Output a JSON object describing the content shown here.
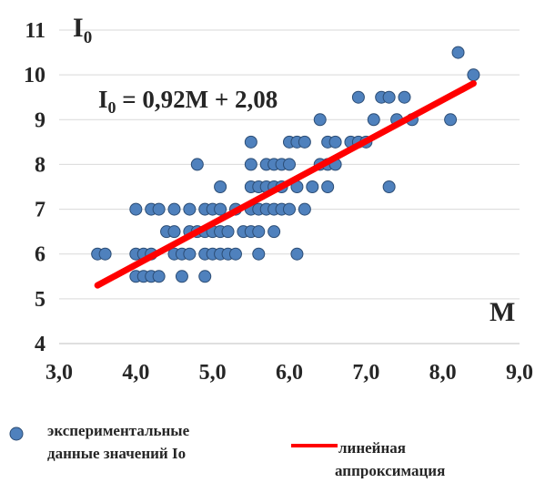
{
  "chart_data": {
    "type": "scatter",
    "xlabel": "M",
    "ylabel": "I",
    "ylabel_subscript": "0",
    "xlim": [
      3.0,
      9.0
    ],
    "ylim": [
      4,
      11
    ],
    "x_ticks": [
      "3,0",
      "4,0",
      "5,0",
      "6,0",
      "7,0",
      "8,0",
      "9,0"
    ],
    "y_ticks": [
      "4",
      "5",
      "6",
      "7",
      "8",
      "9",
      "10",
      "11"
    ],
    "grid": "horizontal",
    "colors": {
      "points": "#4f81bd",
      "point_edge": "#2c4d75",
      "trendline": "#ff0000",
      "grid": "#d9d9d9",
      "text": "#262626"
    },
    "equation": {
      "base": "I",
      "subscript": "0",
      "rest": " = 0,92M + 2,08"
    },
    "trendline": {
      "slope": 0.92,
      "intercept": 2.08,
      "x_range": [
        3.5,
        8.4
      ]
    },
    "legend": {
      "placement": "bottom",
      "points_label": [
        "экспериментальные",
        "данные значений Io"
      ],
      "line_label": [
        "линейная",
        "аппроксимация"
      ]
    },
    "series": [
      {
        "name": "экспериментальные данные значений Io",
        "points": [
          [
            3.5,
            6.0
          ],
          [
            3.6,
            6.0
          ],
          [
            4.0,
            7.0
          ],
          [
            4.0,
            6.0
          ],
          [
            4.0,
            5.5
          ],
          [
            4.1,
            6.0
          ],
          [
            4.1,
            5.5
          ],
          [
            4.2,
            7.0
          ],
          [
            4.2,
            6.0
          ],
          [
            4.2,
            5.5
          ],
          [
            4.3,
            7.0
          ],
          [
            4.3,
            5.5
          ],
          [
            4.4,
            6.5
          ],
          [
            4.5,
            7.0
          ],
          [
            4.5,
            6.5
          ],
          [
            4.5,
            6.0
          ],
          [
            4.6,
            6.0
          ],
          [
            4.6,
            5.5
          ],
          [
            4.7,
            7.0
          ],
          [
            4.7,
            6.5
          ],
          [
            4.7,
            6.0
          ],
          [
            4.8,
            8.0
          ],
          [
            4.8,
            6.5
          ],
          [
            4.9,
            7.0
          ],
          [
            4.9,
            6.5
          ],
          [
            4.9,
            6.0
          ],
          [
            4.9,
            5.5
          ],
          [
            5.0,
            7.0
          ],
          [
            5.0,
            6.5
          ],
          [
            5.0,
            6.0
          ],
          [
            5.1,
            7.5
          ],
          [
            5.1,
            7.0
          ],
          [
            5.1,
            6.5
          ],
          [
            5.1,
            6.0
          ],
          [
            5.2,
            6.5
          ],
          [
            5.2,
            6.0
          ],
          [
            5.3,
            7.0
          ],
          [
            5.3,
            6.0
          ],
          [
            5.4,
            6.5
          ],
          [
            5.5,
            8.5
          ],
          [
            5.5,
            8.0
          ],
          [
            5.5,
            7.5
          ],
          [
            5.5,
            7.0
          ],
          [
            5.5,
            6.5
          ],
          [
            5.6,
            7.5
          ],
          [
            5.6,
            7.0
          ],
          [
            5.6,
            6.5
          ],
          [
            5.6,
            6.0
          ],
          [
            5.7,
            8.0
          ],
          [
            5.7,
            7.5
          ],
          [
            5.7,
            7.0
          ],
          [
            5.8,
            8.0
          ],
          [
            5.8,
            7.5
          ],
          [
            5.8,
            7.0
          ],
          [
            5.8,
            6.5
          ],
          [
            5.9,
            8.0
          ],
          [
            5.9,
            7.5
          ],
          [
            5.9,
            7.0
          ],
          [
            6.0,
            8.5
          ],
          [
            6.0,
            8.0
          ],
          [
            6.0,
            7.0
          ],
          [
            6.1,
            8.5
          ],
          [
            6.1,
            7.5
          ],
          [
            6.1,
            6.0
          ],
          [
            6.2,
            8.5
          ],
          [
            6.2,
            7.0
          ],
          [
            6.3,
            7.5
          ],
          [
            6.4,
            9.0
          ],
          [
            6.4,
            8.0
          ],
          [
            6.5,
            8.5
          ],
          [
            6.5,
            8.0
          ],
          [
            6.5,
            7.5
          ],
          [
            6.6,
            8.5
          ],
          [
            6.6,
            8.0
          ],
          [
            6.8,
            8.5
          ],
          [
            6.9,
            9.5
          ],
          [
            6.9,
            8.5
          ],
          [
            7.0,
            8.5
          ],
          [
            7.1,
            9.0
          ],
          [
            7.2,
            9.5
          ],
          [
            7.3,
            9.5
          ],
          [
            7.3,
            7.5
          ],
          [
            7.4,
            9.0
          ],
          [
            7.5,
            9.5
          ],
          [
            7.6,
            9.0
          ],
          [
            8.1,
            9.0
          ],
          [
            8.2,
            10.5
          ],
          [
            8.4,
            10.0
          ]
        ]
      }
    ]
  }
}
